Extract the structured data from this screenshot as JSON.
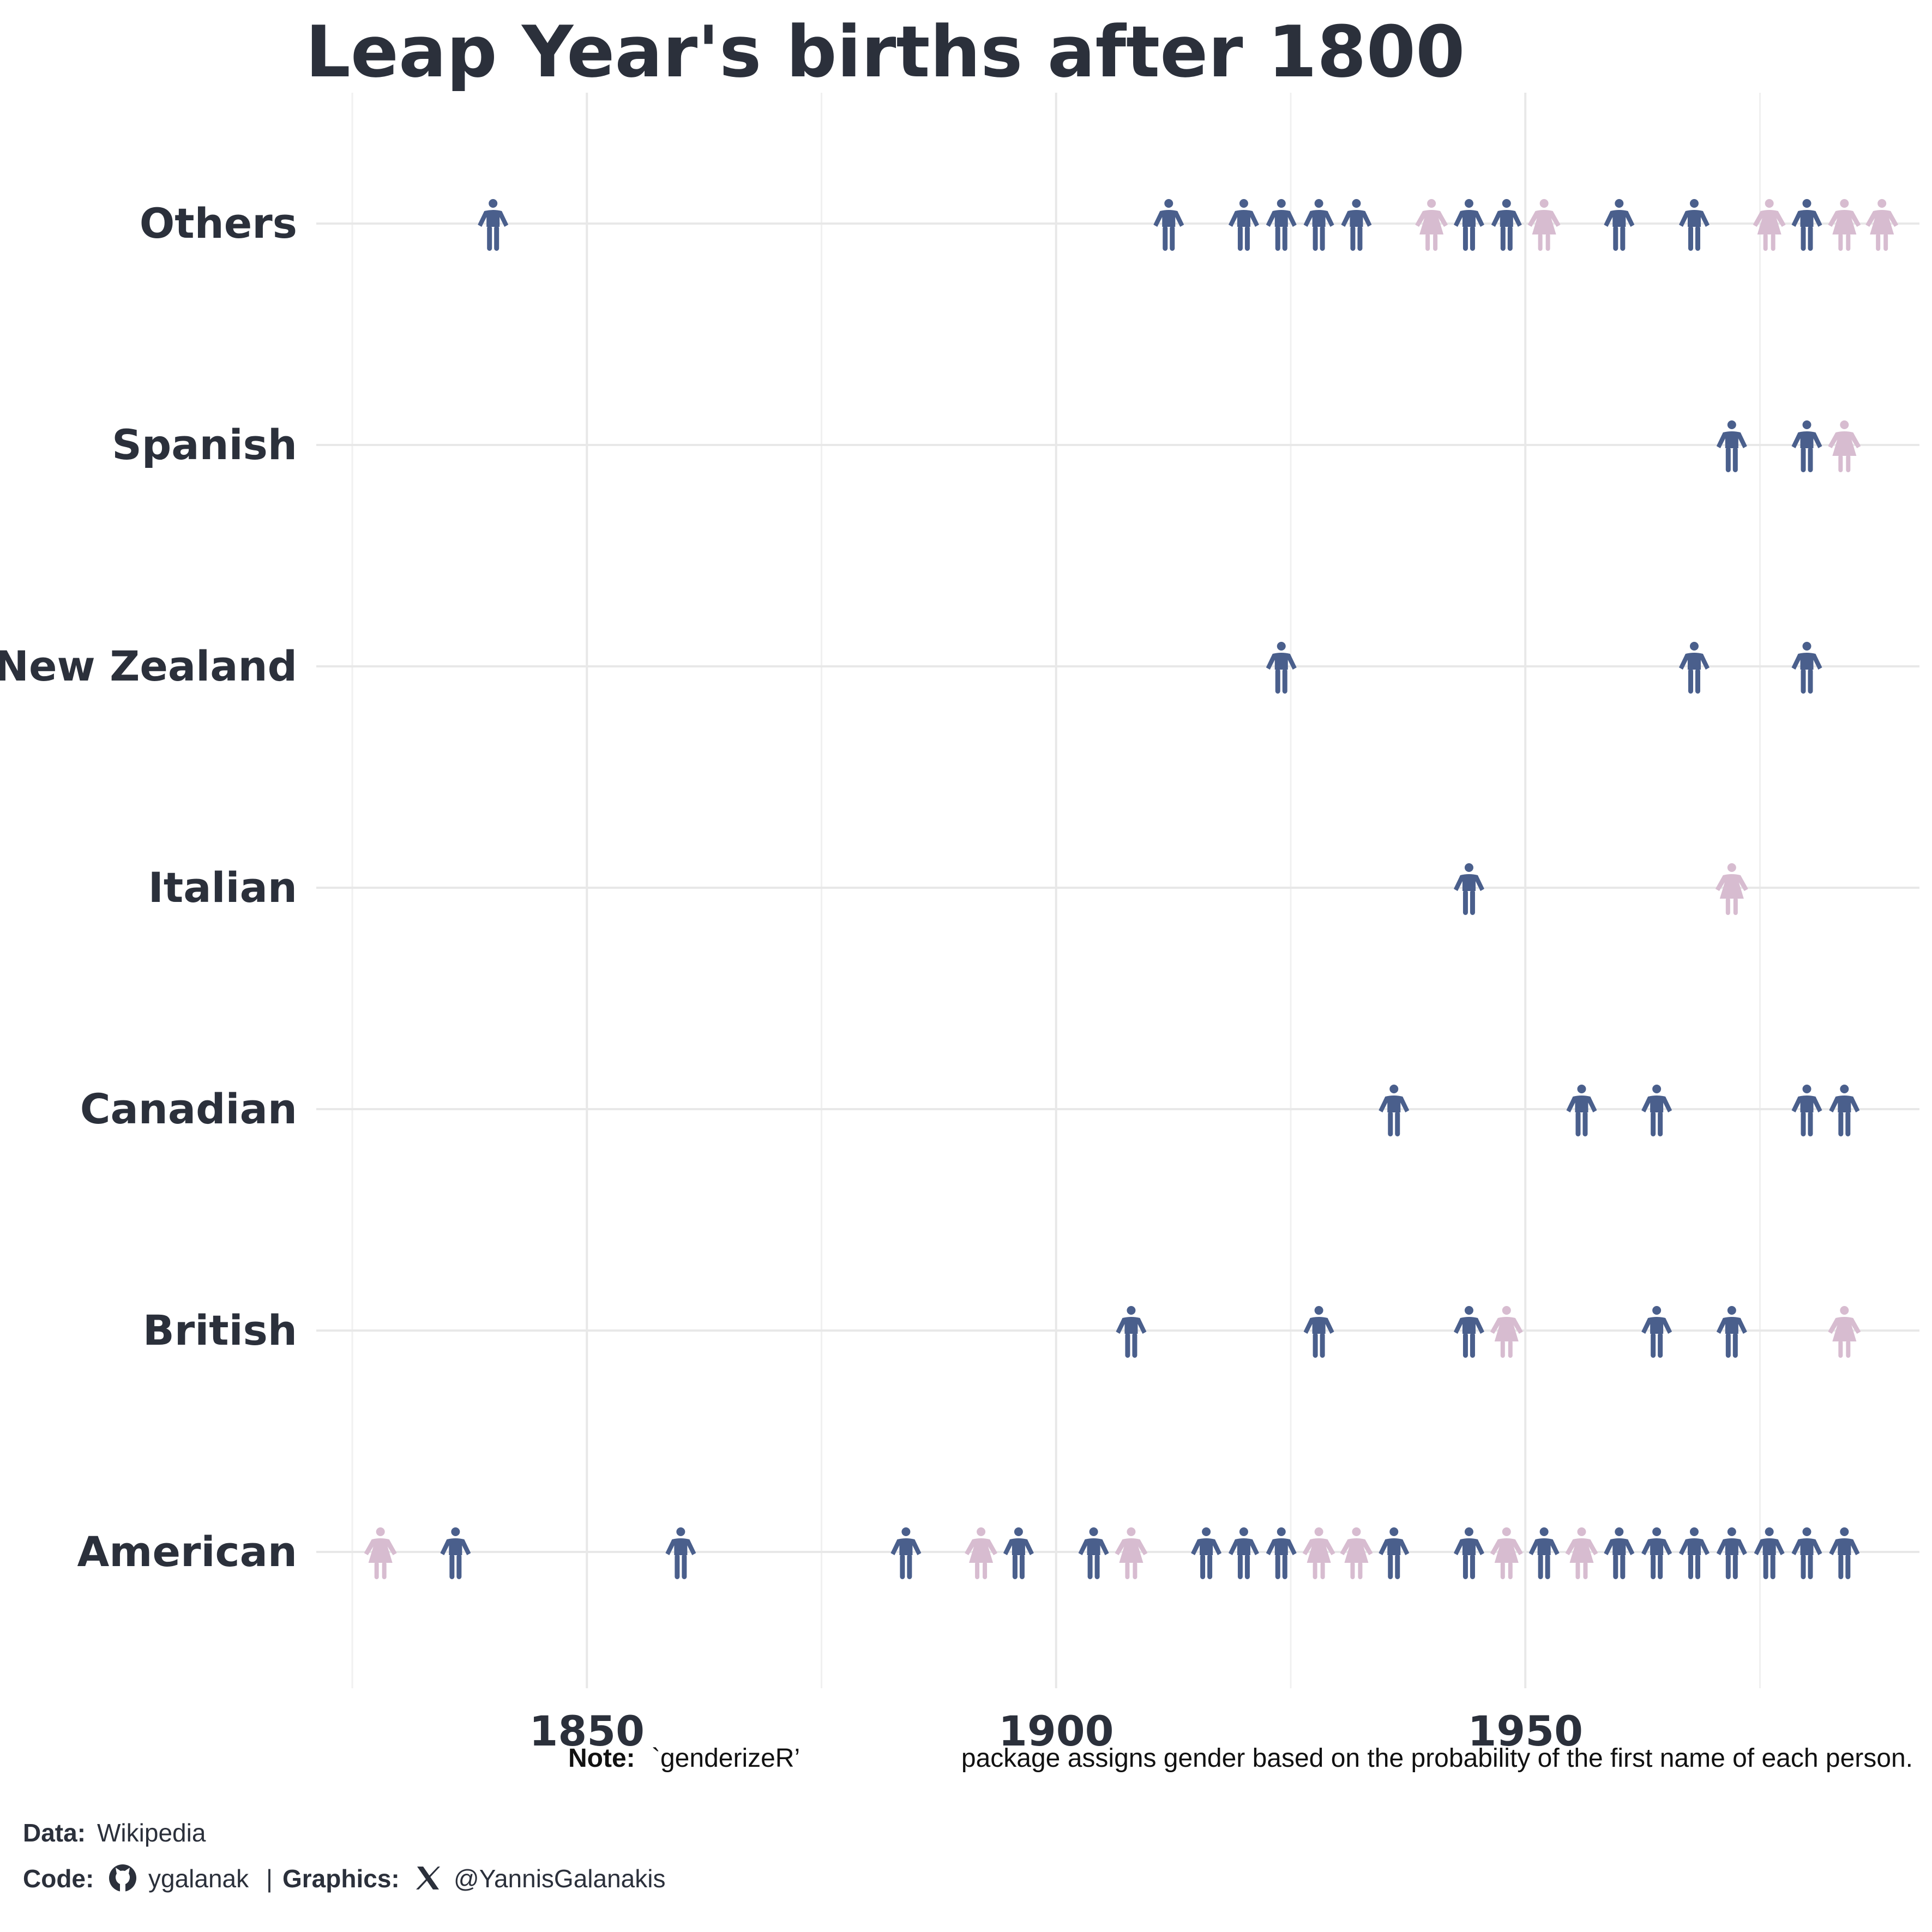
{
  "chart_data": {
    "type": "scatter",
    "title": "Leap Year's births after 1800",
    "xlim": [
      1820,
      1992
    ],
    "x_ticks": [
      1850,
      1900,
      1950
    ],
    "grid": true,
    "categories": [
      "Others",
      "Spanish",
      "New Zealand",
      "Italian",
      "Canadian",
      "British",
      "American"
    ],
    "colors": {
      "male": "#4a5f8c",
      "female": "#d7bcd0"
    },
    "series": [
      {
        "category": "Others",
        "male": [
          1840,
          1912,
          1920,
          1924,
          1928,
          1932,
          1944,
          1948,
          1960,
          1968,
          1980
        ],
        "female": [
          1940,
          1952,
          1976,
          1984,
          1988
        ]
      },
      {
        "category": "Spanish",
        "male": [
          1972,
          1980
        ],
        "female": [
          1984
        ]
      },
      {
        "category": "New Zealand",
        "male": [
          1924,
          1968,
          1980
        ],
        "female": []
      },
      {
        "category": "Italian",
        "male": [
          1944
        ],
        "female": [
          1972
        ]
      },
      {
        "category": "Canadian",
        "male": [
          1936,
          1956,
          1964,
          1980,
          1984
        ],
        "female": []
      },
      {
        "category": "British",
        "male": [
          1908,
          1928,
          1944,
          1964,
          1972
        ],
        "female": [
          1948,
          1984
        ]
      },
      {
        "category": "American",
        "male": [
          1836,
          1860,
          1884,
          1896,
          1904,
          1916,
          1920,
          1924,
          1936,
          1944,
          1952,
          1960,
          1964,
          1968,
          1972,
          1976,
          1980,
          1984
        ],
        "female": [
          1828,
          1892,
          1908,
          1928,
          1932,
          1948,
          1956
        ]
      }
    ]
  },
  "note": {
    "label": "Note:",
    "code": "`genderizeR’",
    "text": "package assigns gender based on the probability of the first name of each person."
  },
  "caption": {
    "data_label": "Data:",
    "data_value": "Wikipedia",
    "code_label": "Code:",
    "code_icon": "github-icon",
    "code_value": "ygalanak",
    "separator": "|",
    "graphics_label": "Graphics:",
    "graphics_icon": "x-icon",
    "graphics_value": "@YannisGalanakis"
  }
}
